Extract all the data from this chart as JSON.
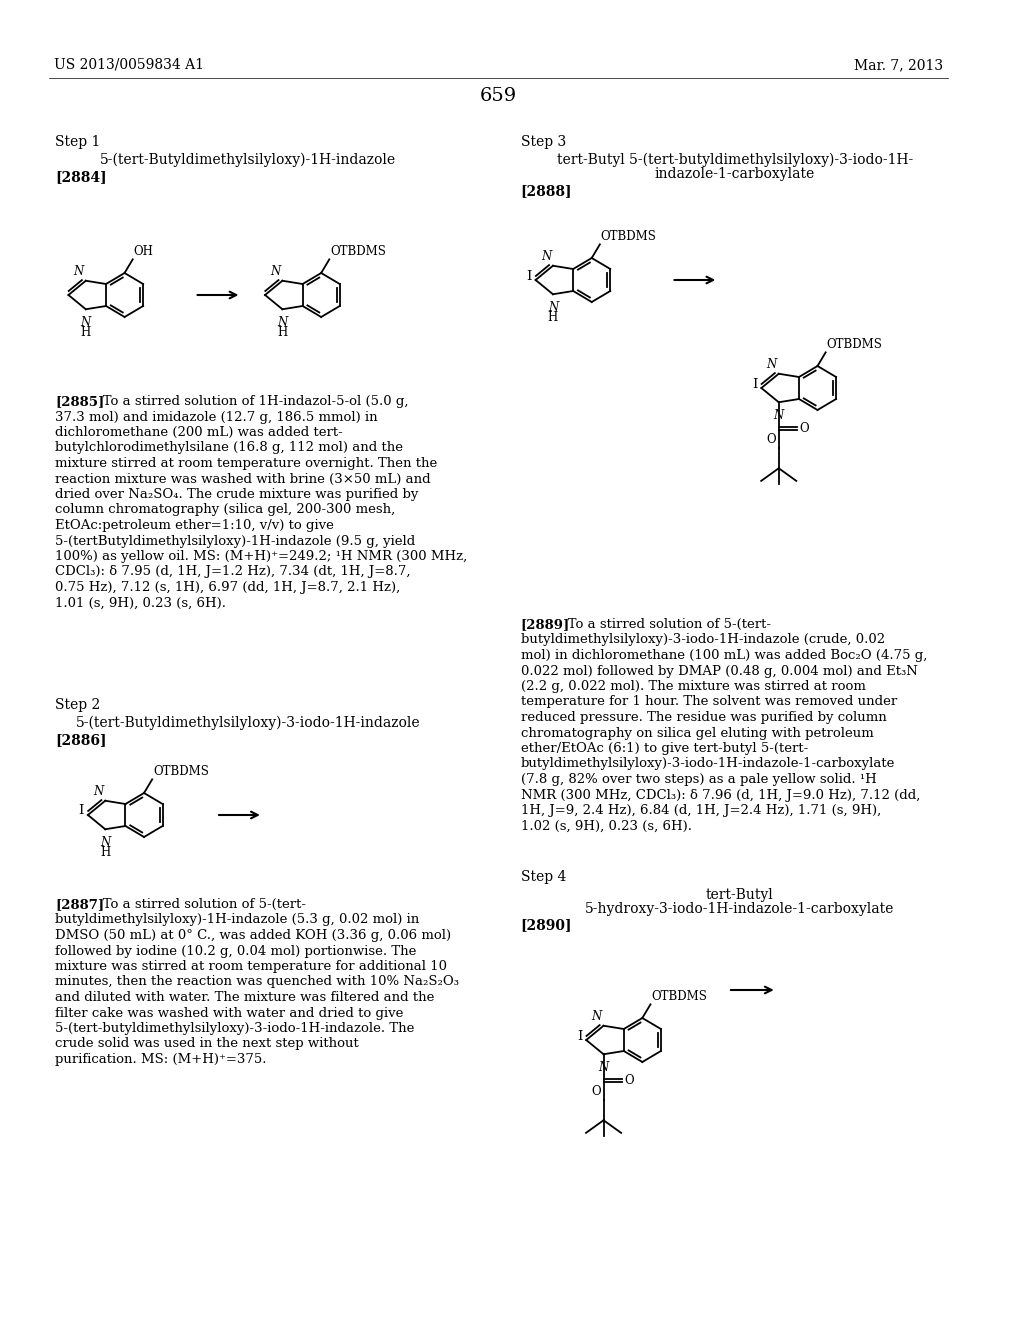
{
  "bg": "#ffffff",
  "header_left": "US 2013/0059834 A1",
  "header_right": "Mar. 7, 2013",
  "page_num": "659",
  "step1_title": "Step 1",
  "step1_name": "5-(tert-Butyldimethylsilyloxy)-1H-indazole",
  "step1_ref": "[2884]",
  "step2_title": "Step 2",
  "step2_name": "5-(tert-Butyldimethylsilyloxy)-3-iodo-1H-indazole",
  "step2_ref": "[2886]",
  "step3_title": "Step 3",
  "step3_name1": "tert-Butyl 5-(tert-butyldimethylsilyloxy)-3-iodo-1H-",
  "step3_name2": "indazole-1-carboxylate",
  "step3_ref": "[2888]",
  "step4_title": "Step 4",
  "step4_name1": "tert-Butyl",
  "step4_name2": "5-hydroxy-3-iodo-1H-indazole-1-carboxylate",
  "step4_ref": "[2890]",
  "para2885_bold": "[2885]",
  "para2885_text": "   To a stirred solution of 1H-indazol-5-ol (5.0 g, 37.3 mol) and imidazole (12.7 g, 186.5 mmol) in dichloromethane (200 mL) was added tert-butylchlorodimethylsilane (16.8 g, 112 mol) and the mixture stirred at room temperature overnight. Then the reaction mixture was washed with brine (3×50 mL) and dried over Na₂SO₄. The crude mixture was purified by column chromatography (silica gel, 200-300 mesh, EtOAc:petroleum ether=1:10, v/v) to give 5-(tertButyldimethylsilyloxy)-1H-indazole (9.5 g, yield 100%) as yellow oil. MS: (M+H)⁺=249.2; ¹H NMR (300 MHz, CDCl₃): δ 7.95 (d, 1H, J=1.2 Hz), 7.34 (dt, 1H, J=8.7, 0.75 Hz), 7.12 (s, 1H), 6.97 (dd, 1H, J=8.7, 2.1 Hz), 1.01 (s, 9H), 0.23 (s, 6H).",
  "para2887_bold": "[2887]",
  "para2887_text": "   To a stirred solution of 5-(tert-butyldimethylsilyloxy)-1H-indazole (5.3 g, 0.02 mol) in DMSO (50 mL) at 0° C., was added KOH (3.36 g, 0.06 mol) followed by iodine (10.2 g, 0.04 mol) portionwise. The mixture was stirred at room temperature for additional 10 minutes, then the reaction was quenched with 10% Na₂S₂O₃ and diluted with water. The mixture was filtered and the filter cake was washed with water and dried to give 5-(tert-butyldimethylsilyloxy)-3-iodo-1H-indazole. The crude solid was used in the next step without purification. MS: (M+H)⁺=375.",
  "para2889_bold": "[2889]",
  "para2889_text": "   To a stirred solution of 5-(tert-butyldimethylsilyloxy)-3-iodo-1H-indazole (crude, 0.02 mol) in dichloromethane (100 mL) was added Boc₂O (4.75 g, 0.022 mol) followed by DMAP (0.48 g, 0.004 mol) and Et₃N (2.2 g, 0.022 mol). The mixture was stirred at room temperature for 1 hour. The solvent was removed under reduced pressure. The residue was purified by column chromatography on silica gel eluting with petroleum ether/EtOAc (6:1) to give tert-butyl 5-(tert-butyldimethylsilyloxy)-3-iodo-1H-indazole-1-carboxylate (7.8 g, 82% over two steps) as a pale yellow solid. ¹H NMR (300 MHz, CDCl₃): δ 7.96 (d, 1H, J=9.0 Hz), 7.12 (dd, 1H, J=9, 2.4 Hz), 6.84 (d, 1H, J=2.4 Hz), 1.71 (s, 9H), 1.02 (s, 9H), 0.23 (s, 6H)."
}
